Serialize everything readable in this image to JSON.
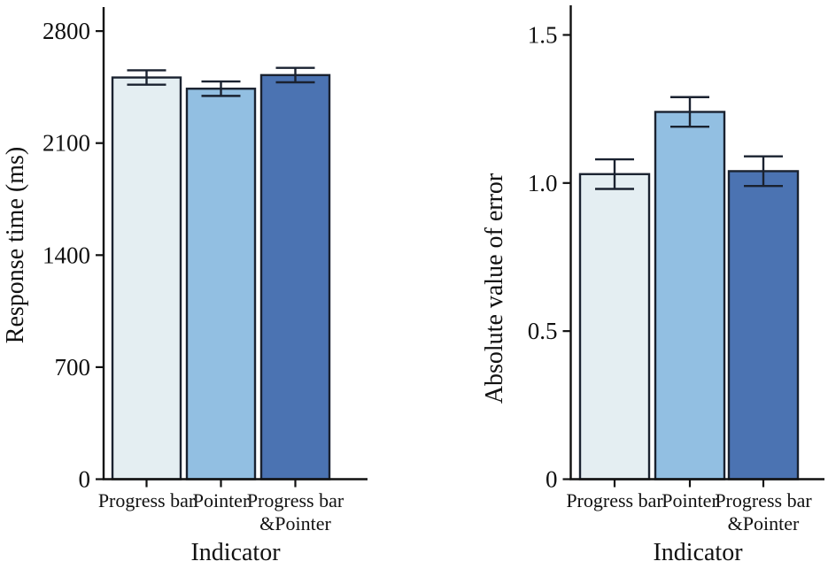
{
  "figure": {
    "background": "#ffffff",
    "text_color": "#111111",
    "axis_color": "#111111",
    "bar_border_color": "#1a2230",
    "error_bar_color": "#1a2230"
  },
  "chart_data": [
    {
      "type": "bar",
      "title": "",
      "xlabel": "Indicator",
      "ylabel": "Response time (ms)",
      "categories": [
        "Progress bar",
        "Pointer",
        "Progress bar &Pointer"
      ],
      "category_lines": [
        [
          "Progress bar"
        ],
        [
          "Pointer"
        ],
        [
          "Progress bar",
          "&Pointer"
        ]
      ],
      "values": [
        2510,
        2440,
        2525
      ],
      "errors": [
        45,
        45,
        45
      ],
      "yticks": [
        0,
        700,
        1400,
        2100,
        2800
      ],
      "ytick_labels": [
        "0",
        "700",
        "1400",
        "2100",
        "2800"
      ],
      "ylim": [
        0,
        2950
      ],
      "grid": false,
      "legend": "none",
      "bar_colors": [
        "#e4eef2",
        "#92bfe2",
        "#4b73b2"
      ]
    },
    {
      "type": "bar",
      "title": "",
      "xlabel": "Indicator",
      "ylabel": "Absolute value of error",
      "categories": [
        "Progress bar",
        "Pointer",
        "Progress bar &Pointer"
      ],
      "category_lines": [
        [
          "Progress bar"
        ],
        [
          "Pointer"
        ],
        [
          "Progress bar",
          "&Pointer"
        ]
      ],
      "values": [
        1.03,
        1.24,
        1.04
      ],
      "errors": [
        0.05,
        0.05,
        0.05
      ],
      "yticks": [
        0,
        0.5,
        1.0,
        1.5
      ],
      "ytick_labels": [
        "0",
        "0.5",
        "1.0",
        "1.5"
      ],
      "ylim": [
        0,
        1.6
      ],
      "grid": false,
      "legend": "none",
      "bar_colors": [
        "#e4eef2",
        "#92bfe2",
        "#4b73b2"
      ]
    }
  ]
}
